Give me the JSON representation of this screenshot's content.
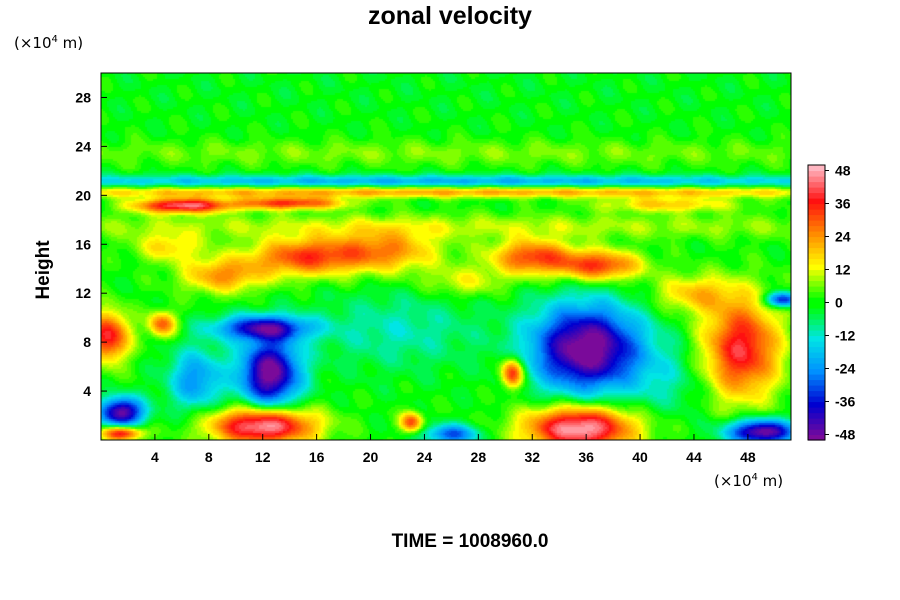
{
  "header": {
    "title": "zonal velocity",
    "y_unit_prefix": "(×10",
    "y_unit_exp": "4",
    "y_unit_suffix": " m)",
    "x_unit_prefix": "(×10",
    "x_unit_exp": "4",
    "x_unit_suffix": " m)"
  },
  "axes": {
    "ylabel": "Height"
  },
  "footer": {
    "time_label": "TIME = 1008960.0"
  },
  "chart_data": {
    "type": "heatmap",
    "title": "zonal velocity",
    "xlabel": "",
    "ylabel": "Height",
    "xlim": [
      0,
      51.2
    ],
    "ylim": [
      0,
      30
    ],
    "x_ticks": [
      4,
      8,
      12,
      16,
      20,
      24,
      28,
      32,
      36,
      40,
      44,
      48
    ],
    "y_ticks": [
      4,
      8,
      12,
      16,
      20,
      24,
      28
    ],
    "colorbar": {
      "ticks": [
        48,
        36,
        24,
        12,
        0,
        -12,
        -24,
        -36,
        -48
      ],
      "range": [
        -50,
        50
      ],
      "colors": [
        "#7a0a9a",
        "#0000d0",
        "#0090ff",
        "#00e5e5",
        "#00ff00",
        "#ffff00",
        "#ff8c00",
        "#ff1010",
        "#ffb6c1"
      ]
    },
    "background_value": 0,
    "features": [
      {
        "x": 25,
        "y": 29,
        "sx": 40,
        "sy": 3,
        "v": -1
      },
      {
        "x": 25,
        "y": 23.5,
        "sx": 40,
        "sy": 1.0,
        "v": 6
      },
      {
        "x": 25,
        "y": 21.2,
        "sx": 40,
        "sy": 0.5,
        "v": -20
      },
      {
        "x": 25,
        "y": 20.3,
        "sx": 40,
        "sy": 0.45,
        "v": 22
      },
      {
        "x": 6,
        "y": 19.2,
        "sx": 3.5,
        "sy": 0.6,
        "v": 45
      },
      {
        "x": 14,
        "y": 19.4,
        "sx": 4,
        "sy": 0.5,
        "v": 35
      },
      {
        "x": 42,
        "y": 19.3,
        "sx": 5,
        "sy": 0.6,
        "v": 18
      },
      {
        "x": 25,
        "y": 17.5,
        "sx": 40,
        "sy": 1.0,
        "v": 9
      },
      {
        "x": 15,
        "y": 15,
        "sx": 4,
        "sy": 1.5,
        "v": 32
      },
      {
        "x": 21,
        "y": 15.5,
        "sx": 4,
        "sy": 1.7,
        "v": 25
      },
      {
        "x": 32,
        "y": 15,
        "sx": 3,
        "sy": 1.4,
        "v": 33
      },
      {
        "x": 37,
        "y": 14.3,
        "sx": 3,
        "sy": 1.2,
        "v": 34
      },
      {
        "x": 9,
        "y": 13.5,
        "sx": 3,
        "sy": 1.4,
        "v": 24
      },
      {
        "x": 5,
        "y": 15.8,
        "sx": 2.5,
        "sy": 1.2,
        "v": 16
      },
      {
        "x": 27,
        "y": 13,
        "sx": 3,
        "sy": 1.2,
        "v": 12
      },
      {
        "x": 12,
        "y": 9.2,
        "sx": 3.5,
        "sy": 1.0,
        "v": -40
      },
      {
        "x": 12.5,
        "y": 5.5,
        "sx": 2.2,
        "sy": 2.8,
        "v": -52
      },
      {
        "x": 7,
        "y": 5,
        "sx": 2,
        "sy": 2.5,
        "v": -24
      },
      {
        "x": 0.5,
        "y": 8.5,
        "sx": 1.5,
        "sy": 2,
        "v": 40
      },
      {
        "x": 4.5,
        "y": 9.5,
        "sx": 1,
        "sy": 1,
        "v": 30
      },
      {
        "x": 1.5,
        "y": 2.3,
        "sx": 1.6,
        "sy": 1.2,
        "v": -50
      },
      {
        "x": 1.5,
        "y": 0.6,
        "sx": 1.5,
        "sy": 0.6,
        "v": 42
      },
      {
        "x": 12,
        "y": 1.2,
        "sx": 3.8,
        "sy": 1.5,
        "v": 52
      },
      {
        "x": 36,
        "y": 7.5,
        "sx": 4,
        "sy": 3.5,
        "v": -55
      },
      {
        "x": 35.5,
        "y": 1.0,
        "sx": 4,
        "sy": 1.8,
        "v": 52
      },
      {
        "x": 47.5,
        "y": 7.5,
        "sx": 2.8,
        "sy": 4,
        "v": 40
      },
      {
        "x": 49,
        "y": 0.7,
        "sx": 2.5,
        "sy": 1.0,
        "v": -52
      },
      {
        "x": 26,
        "y": 0.5,
        "sx": 2,
        "sy": 0.8,
        "v": -30
      },
      {
        "x": 30.5,
        "y": 5.5,
        "sx": 0.8,
        "sy": 1.2,
        "v": 40
      },
      {
        "x": 23,
        "y": 1.5,
        "sx": 0.8,
        "sy": 0.8,
        "v": 32
      },
      {
        "x": 22,
        "y": 9,
        "sx": 6,
        "sy": 3,
        "v": -10
      },
      {
        "x": 42,
        "y": 5,
        "sx": 3,
        "sy": 3,
        "v": -8
      },
      {
        "x": 44,
        "y": 12,
        "sx": 3,
        "sy": 1.5,
        "v": 18
      },
      {
        "x": 50.5,
        "y": 11.5,
        "sx": 1.2,
        "sy": 0.6,
        "v": -40
      }
    ]
  }
}
